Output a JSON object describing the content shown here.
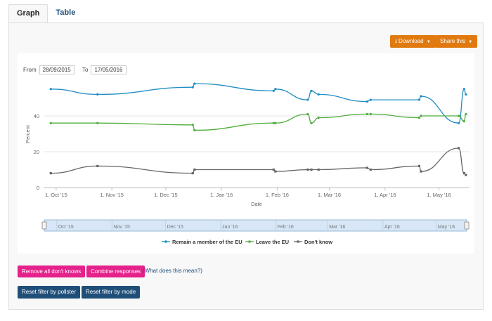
{
  "tabs": [
    {
      "label": "Graph"
    },
    {
      "label": "Table"
    }
  ],
  "toolbar": {
    "download_label": "Download",
    "share_label": "Share this"
  },
  "filters": {
    "from_label": "From",
    "from_value": "28/09/2015",
    "to_label": "To",
    "to_value": "17/05/2016"
  },
  "chart_data": {
    "type": "line",
    "xlabel": "Date",
    "ylabel": "Percent",
    "ylim": [
      0,
      60
    ],
    "y_ticks": [
      0,
      20,
      40
    ],
    "x_ticks": [
      "1. Oct '15",
      "1. Nov '15",
      "1. Dec '15",
      "1. Jan '16",
      "1. Feb '16",
      "1. Mar '16",
      "1. Apr '16",
      "1. May '16"
    ],
    "grid": true,
    "legend_position": "bottom",
    "series": [
      {
        "name": "Remain a member of the EU",
        "color": "#1f8dc4",
        "points": [
          [
            "2015-09-28",
            55
          ],
          [
            "2015-10-24",
            52
          ],
          [
            "2015-12-16",
            56
          ],
          [
            "2015-12-17",
            58
          ],
          [
            "2016-01-30",
            54
          ],
          [
            "2016-01-31",
            55
          ],
          [
            "2016-02-18",
            49
          ],
          [
            "2016-02-20",
            54
          ],
          [
            "2016-02-24",
            52
          ],
          [
            "2016-03-22",
            48
          ],
          [
            "2016-03-24",
            49
          ],
          [
            "2016-04-20",
            49
          ],
          [
            "2016-04-21",
            51
          ],
          [
            "2016-05-12",
            36
          ],
          [
            "2016-05-15",
            55
          ],
          [
            "2016-05-16",
            52
          ]
        ]
      },
      {
        "name": "Leave the EU",
        "color": "#4ead3a",
        "points": [
          [
            "2015-09-28",
            36
          ],
          [
            "2015-10-24",
            36
          ],
          [
            "2015-12-16",
            35
          ],
          [
            "2015-12-17",
            32
          ],
          [
            "2016-01-30",
            36
          ],
          [
            "2016-01-31",
            36
          ],
          [
            "2016-02-18",
            41
          ],
          [
            "2016-02-20",
            36
          ],
          [
            "2016-02-24",
            39
          ],
          [
            "2016-03-22",
            41
          ],
          [
            "2016-03-24",
            41
          ],
          [
            "2016-04-20",
            39
          ],
          [
            "2016-04-21",
            40
          ],
          [
            "2016-05-12",
            40
          ],
          [
            "2016-05-15",
            37
          ],
          [
            "2016-05-16",
            41
          ]
        ]
      },
      {
        "name": "Don't know",
        "color": "#666666",
        "points": [
          [
            "2015-09-28",
            8
          ],
          [
            "2015-10-24",
            12
          ],
          [
            "2015-12-16",
            8
          ],
          [
            "2015-12-17",
            10
          ],
          [
            "2016-01-30",
            10
          ],
          [
            "2016-01-31",
            9
          ],
          [
            "2016-02-18",
            10
          ],
          [
            "2016-02-20",
            10
          ],
          [
            "2016-02-24",
            10
          ],
          [
            "2016-03-22",
            11
          ],
          [
            "2016-03-24",
            10
          ],
          [
            "2016-04-20",
            12
          ],
          [
            "2016-04-21",
            9
          ],
          [
            "2016-05-12",
            22
          ],
          [
            "2016-05-15",
            8
          ],
          [
            "2016-05-16",
            7
          ]
        ]
      }
    ]
  },
  "navigator": {
    "labels": [
      "Oct '15",
      "Nov '15",
      "Dec '15",
      "Jan '16",
      "Feb '16",
      "Mar '16",
      "Apr '16",
      "May '16"
    ]
  },
  "actions": {
    "remove_dont_knows": "Remove all don't knows",
    "combine_responses": "Combine responses",
    "help_link": "(What does this mean?)",
    "reset_pollster": "Reset filter by pollster",
    "reset_mode": "Reset filter by mode"
  }
}
